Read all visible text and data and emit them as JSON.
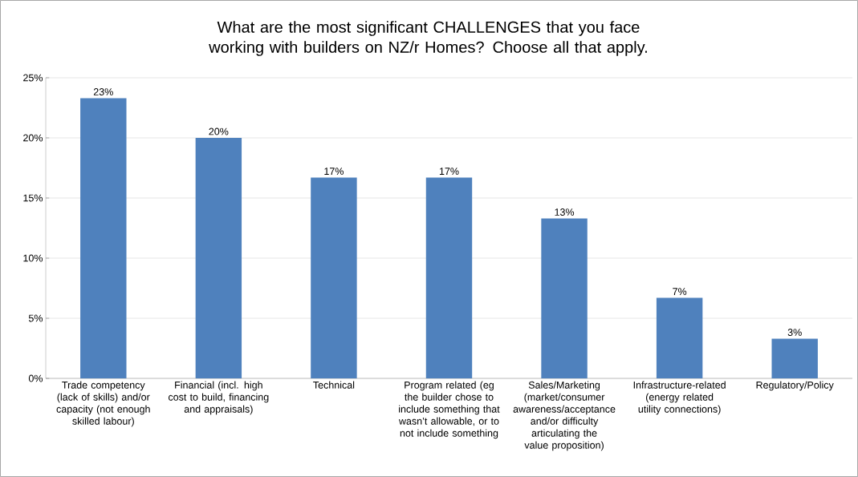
{
  "chart_data": {
    "type": "bar",
    "title": "What are the most significant CHALLENGES that you face working with builders on NZ/r Homes? Choose all that apply.",
    "categories": [
      "Trade competency (lack of skills) and/or capacity (not enough skilled labour)",
      "Financial (incl. high cost to build, financing and appraisals)",
      "Technical",
      "Program related (eg the builder chose to include something that wasn’t allowable, or to not include something",
      "Sales/Marketing (market/consumer awareness/acceptance and/or difficulty articulating the value proposition)",
      "Infrastructure-related (energy related utility connections)",
      "Regulatory/Policy"
    ],
    "values": [
      23.3,
      20.0,
      16.7,
      16.7,
      13.3,
      6.7,
      3.3
    ],
    "value_labels": [
      "23%",
      "20%",
      "17%",
      "17%",
      "13%",
      "7%",
      "3%"
    ],
    "color": "#4f81bd",
    "ylim": [
      0,
      25
    ],
    "yticks": [
      {
        "value": 0,
        "label": "0%"
      },
      {
        "value": 5,
        "label": "5%"
      },
      {
        "value": 10,
        "label": "10%"
      },
      {
        "value": 15,
        "label": "15%"
      },
      {
        "value": 20,
        "label": "20%"
      },
      {
        "value": 25,
        "label": "25%"
      }
    ],
    "grid": "y"
  }
}
